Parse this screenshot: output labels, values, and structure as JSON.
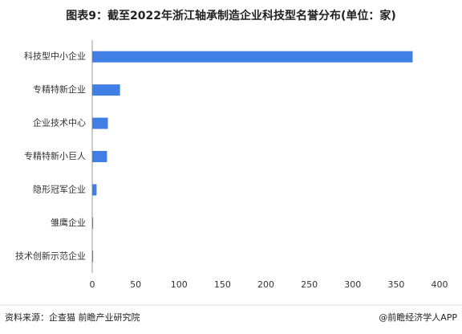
{
  "chart_data": {
    "type": "hbar",
    "title": "图表9：截至2022年浙江轴承制造企业科技型名誉分布(单位：家)",
    "categories": [
      "科技型中小企业",
      "专精特新企业",
      "企业技术中心",
      "专精特新小巨人",
      "隐形冠军企业",
      "雏鹰企业",
      "技术创新示范企业"
    ],
    "values": [
      369,
      32,
      18,
      17,
      5,
      1,
      1
    ],
    "color": "#3f7fe6",
    "xlim": [
      0,
      400
    ],
    "xticks": [
      0,
      50,
      100,
      150,
      200,
      250,
      300,
      350,
      400
    ],
    "grid": false
  },
  "footer": {
    "source": "资料来源：企查猫 前瞻产业研究院",
    "brand": "@前瞻经济学人APP"
  }
}
